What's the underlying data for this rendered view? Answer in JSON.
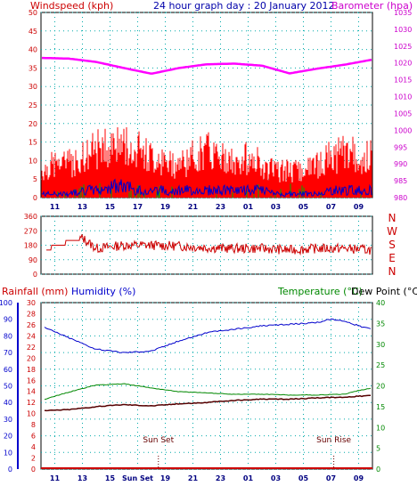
{
  "header": {
    "left_label": "Windspeed (kph)",
    "title": "24 hour graph day : 20 January 2012",
    "right_label": "Barometer (hpa)"
  },
  "colors": {
    "wind": "#ff0000",
    "gust": "#0000cc",
    "green": "#00aa00",
    "barometer": "#ff00ff",
    "direction": "#cc0000",
    "humidity": "#0000cc",
    "temperature": "#008800",
    "dewpoint": "#550000",
    "rain": "#cc0000",
    "grid": "#00aaaa"
  },
  "chart_data": [
    {
      "type": "line",
      "id": "wind-barometer",
      "x_ticks": [
        "11",
        "13",
        "15",
        "17",
        "19",
        "21",
        "23",
        "01",
        "03",
        "05",
        "07",
        "09"
      ],
      "wind_axis": {
        "label": "Windspeed (kph)",
        "ticks": [
          0,
          5,
          10,
          15,
          20,
          25,
          30,
          35,
          40,
          45,
          50
        ],
        "ylim": [
          0,
          50
        ]
      },
      "baro_axis": {
        "label": "Barometer (hpa)",
        "ticks": [
          980,
          985,
          990,
          995,
          1000,
          1005,
          1010,
          1015,
          1020,
          1025,
          1030,
          1035
        ],
        "ylim": [
          980,
          1035
        ]
      },
      "series": [
        {
          "name": "Windspeed",
          "x": [
            10,
            11,
            12,
            13,
            14,
            15,
            16,
            17,
            18,
            19,
            20,
            21,
            22,
            23,
            24,
            25,
            26,
            27,
            28,
            29,
            30,
            31,
            32,
            33,
            34
          ],
          "values": [
            4,
            5,
            5,
            6,
            7,
            8,
            8,
            7,
            6,
            5,
            5,
            6,
            7,
            6,
            5,
            6,
            5,
            4,
            4,
            4,
            5,
            6,
            7,
            6,
            6
          ]
        },
        {
          "name": "Gust",
          "x": [
            10,
            11,
            12,
            13,
            14,
            15,
            16,
            17,
            18,
            19,
            20,
            21,
            22,
            23,
            24,
            25,
            26,
            27,
            28,
            29,
            30,
            31,
            32,
            33,
            34
          ],
          "values": [
            1,
            1,
            1,
            2,
            2,
            3,
            3,
            2,
            2,
            2,
            2,
            2,
            2,
            2,
            2,
            2,
            2,
            1,
            1,
            1,
            1,
            2,
            2,
            2,
            2
          ]
        },
        {
          "name": "Barometer",
          "x": [
            10,
            12,
            14,
            16,
            18,
            20,
            22,
            24,
            26,
            28,
            30,
            32,
            34
          ],
          "values": [
            1021.5,
            1021.3,
            1020.3,
            1018.5,
            1016.8,
            1018.5,
            1019.6,
            1019.8,
            1019.2,
            1016.9,
            1018.3,
            1019.5,
            1021
          ]
        }
      ]
    },
    {
      "type": "line",
      "id": "wind-direction",
      "y_ticks": [
        0,
        90,
        180,
        270,
        360
      ],
      "ylim": [
        0,
        360
      ],
      "compass": [
        "N",
        "W",
        "S",
        "E",
        "N"
      ],
      "series": [
        {
          "name": "Direction",
          "x": [
            10,
            11,
            12,
            13,
            14,
            16,
            18,
            20,
            22,
            24,
            26,
            28,
            30,
            32,
            34
          ],
          "values": [
            140,
            175,
            200,
            225,
            160,
            180,
            180,
            175,
            165,
            160,
            160,
            150,
            160,
            160,
            150
          ]
        }
      ]
    },
    {
      "type": "line",
      "id": "temp-hum-rain",
      "header_labels": {
        "rain": "Rainfall (mm)",
        "humidity": "Humidity (%)",
        "temperature": "Temperature (°C)",
        "dewpoint": "Dew Point (°C)"
      },
      "rain_ticks": [
        0,
        2,
        4,
        6,
        8,
        10,
        12,
        14,
        16,
        18,
        20,
        22,
        24,
        26,
        28,
        30
      ],
      "humidity_ticks": [
        0,
        10,
        20,
        30,
        40,
        50,
        60,
        70,
        80,
        90,
        100
      ],
      "temp_ticks": [
        0,
        5,
        10,
        15,
        20,
        25,
        30,
        35,
        40
      ],
      "x_ticks": [
        "11",
        "13",
        "15",
        "Sun Set",
        "19",
        "21",
        "23",
        "01",
        "03",
        "05",
        "07",
        "09"
      ],
      "annotations": [
        {
          "text": "Sun Set",
          "x": 18.5
        },
        {
          "text": "Sun Rise",
          "x": 31.2
        }
      ],
      "series": [
        {
          "name": "Humidity",
          "x": [
            10,
            12,
            14,
            16,
            18,
            20,
            22,
            24,
            26,
            28,
            30,
            31,
            32,
            33,
            34
          ],
          "values": [
            86,
            79,
            72,
            70,
            71,
            77,
            82,
            84,
            86,
            87,
            88,
            90,
            89,
            86,
            84
          ]
        },
        {
          "name": "Temperature",
          "x": [
            10,
            12,
            14,
            16,
            18,
            20,
            22,
            24,
            26,
            28,
            30,
            31,
            32,
            33,
            34
          ],
          "values": [
            16.5,
            18.5,
            20.2,
            20.5,
            19.5,
            18.6,
            18.3,
            18.0,
            18.0,
            17.8,
            17.8,
            17.9,
            18.0,
            18.9,
            19.5
          ]
        },
        {
          "name": "Dew Point",
          "x": [
            10,
            12,
            14,
            16,
            18,
            20,
            22,
            24,
            26,
            28,
            30,
            32,
            34
          ],
          "values": [
            14.0,
            14.3,
            15.0,
            15.5,
            15.2,
            15.7,
            16.0,
            16.5,
            16.8,
            16.8,
            17.1,
            17.3,
            17.7
          ]
        },
        {
          "name": "Rainfall",
          "x": [
            10,
            34
          ],
          "values": [
            0,
            0
          ]
        }
      ]
    }
  ]
}
